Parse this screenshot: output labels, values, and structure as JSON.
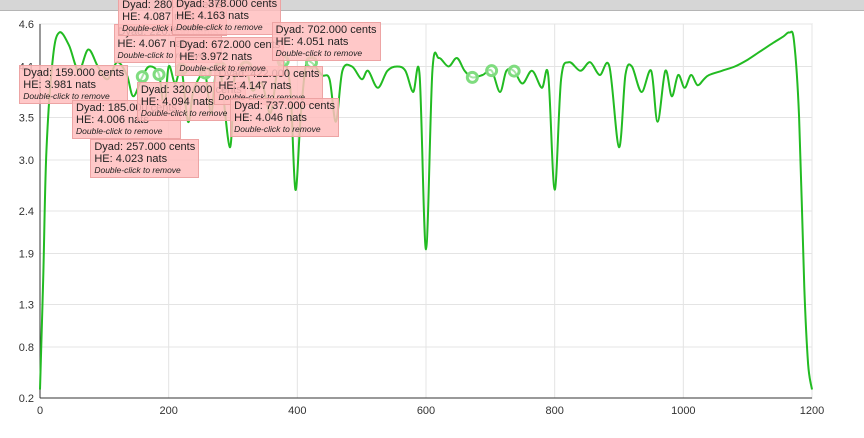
{
  "colors": {
    "line": "#22bb22",
    "marker": "#7fdc7f",
    "grid": "#e4e4e4",
    "axis": "#333333",
    "annotation_bg": "#ffbebe"
  },
  "chart_data": {
    "type": "line",
    "title": "",
    "xlabel": "",
    "ylabel": "",
    "xlim": [
      0,
      1200
    ],
    "ylim": [
      0.2,
      4.6
    ],
    "grid": true,
    "x_ticks": [
      "0",
      "200",
      "400",
      "600",
      "800",
      "1000",
      "1200"
    ],
    "y_ticks": [
      "4.6",
      "4.1",
      "3.5",
      "3.0",
      "2.4",
      "1.9",
      "1.3",
      "0.8",
      "0.2"
    ],
    "series": [
      {
        "name": "",
        "points": [
          [
            0,
            0.3
          ],
          [
            5,
            1.6
          ],
          [
            10,
            3.1
          ],
          [
            20,
            4.2
          ],
          [
            30,
            4.5
          ],
          [
            45,
            4.35
          ],
          [
            60,
            4.05
          ],
          [
            75,
            4.3
          ],
          [
            90,
            4.1
          ],
          [
            105,
            3.95
          ],
          [
            120,
            4.15
          ],
          [
            135,
            4.0
          ],
          [
            145,
            3.75
          ],
          [
            159,
            3.981
          ],
          [
            170,
            4.1
          ],
          [
            185,
            4.006
          ],
          [
            193,
            3.6
          ],
          [
            200,
            4.1
          ],
          [
            210,
            3.9
          ],
          [
            220,
            4.067
          ],
          [
            230,
            3.45
          ],
          [
            238,
            3.8
          ],
          [
            250,
            4.0
          ],
          [
            257,
            4.023
          ],
          [
            266,
            3.55
          ],
          [
            273,
            4.02
          ],
          [
            280,
            4.087
          ],
          [
            295,
            3.15
          ],
          [
            302,
            3.95
          ],
          [
            310,
            4.0
          ],
          [
            320,
            4.094
          ],
          [
            330,
            3.82
          ],
          [
            345,
            3.9
          ],
          [
            358,
            3.55
          ],
          [
            368,
            4.0
          ],
          [
            378,
            4.163
          ],
          [
            389,
            3.85
          ],
          [
            397,
            2.65
          ],
          [
            405,
            3.5
          ],
          [
            413,
            4.1
          ],
          [
            422,
            4.147
          ],
          [
            438,
            4.0
          ],
          [
            450,
            3.95
          ],
          [
            460,
            3.45
          ],
          [
            470,
            4.05
          ],
          [
            485,
            4.1
          ],
          [
            500,
            3.95
          ],
          [
            510,
            4.05
          ],
          [
            525,
            3.85
          ],
          [
            540,
            4.05
          ],
          [
            555,
            4.1
          ],
          [
            568,
            4.05
          ],
          [
            580,
            3.8
          ],
          [
            590,
            4.0
          ],
          [
            600,
            1.95
          ],
          [
            610,
            4.05
          ],
          [
            620,
            4.2
          ],
          [
            635,
            4.1
          ],
          [
            648,
            4.2
          ],
          [
            660,
            4.05
          ],
          [
            672,
            3.972
          ],
          [
            688,
            4.0
          ],
          [
            702,
            4.051
          ],
          [
            715,
            3.8
          ],
          [
            725,
            4.05
          ],
          [
            737,
            4.046
          ],
          [
            750,
            3.9
          ],
          [
            765,
            4.05
          ],
          [
            780,
            3.85
          ],
          [
            790,
            4.0
          ],
          [
            800,
            2.65
          ],
          [
            810,
            3.95
          ],
          [
            822,
            4.15
          ],
          [
            840,
            4.05
          ],
          [
            855,
            4.15
          ],
          [
            870,
            4.0
          ],
          [
            885,
            4.1
          ],
          [
            900,
            3.15
          ],
          [
            910,
            4.0
          ],
          [
            920,
            4.1
          ],
          [
            935,
            3.8
          ],
          [
            950,
            4.05
          ],
          [
            960,
            3.45
          ],
          [
            972,
            4.05
          ],
          [
            982,
            3.75
          ],
          [
            992,
            4.0
          ],
          [
            1002,
            3.85
          ],
          [
            1012,
            4.0
          ],
          [
            1022,
            3.88
          ],
          [
            1032,
            3.95
          ],
          [
            1040,
            4.0
          ],
          [
            1060,
            4.05
          ],
          [
            1080,
            4.1
          ],
          [
            1100,
            4.18
          ],
          [
            1120,
            4.28
          ],
          [
            1140,
            4.38
          ],
          [
            1155,
            4.45
          ],
          [
            1165,
            4.5
          ],
          [
            1172,
            4.4
          ],
          [
            1180,
            3.5
          ],
          [
            1188,
            1.5
          ],
          [
            1194,
            0.6
          ],
          [
            1200,
            0.3
          ]
        ]
      }
    ],
    "annotations": [
      {
        "x": 159,
        "y": 3.981,
        "dyad": "Dyad: 159.000 cents",
        "he": "HE: 3.981 nats",
        "hint": "Double-click to remove"
      },
      {
        "x": 185,
        "y": 4.006,
        "dyad": "Dyad: 185.000 cents",
        "he": "HE: 4.006 nats",
        "hint": "Double-click to remove"
      },
      {
        "x": 220,
        "y": 4.067,
        "dyad": "Dyad: 220.000 cents",
        "he": "HE: 4.067 nats",
        "hint": "Double-click to remove"
      },
      {
        "x": 257,
        "y": 4.023,
        "dyad": "Dyad: 257.000 cents",
        "he": "HE: 4.023 nats",
        "hint": "Double-click to remove"
      },
      {
        "x": 280,
        "y": 4.087,
        "dyad": "Dyad: 280.000 cents",
        "he": "HE: 4.087 nats",
        "hint": "Double-click to remove"
      },
      {
        "x": 320,
        "y": 4.094,
        "dyad": "Dyad: 320.000 cents",
        "he": "HE: 4.094 nats",
        "hint": "Double-click to remove"
      },
      {
        "x": 378,
        "y": 4.163,
        "dyad": "Dyad: 378.000 cents",
        "he": "HE: 4.163 nats",
        "hint": "Double-click to remove"
      },
      {
        "x": 422,
        "y": 4.147,
        "dyad": "Dyad: 422.000 cents",
        "he": "HE: 4.147 nats",
        "hint": "Double-click to remove"
      },
      {
        "x": 672,
        "y": 3.972,
        "dyad": "Dyad: 672.000 cents",
        "he": "HE: 3.972 nats",
        "hint": "Double-click to remove"
      },
      {
        "x": 702,
        "y": 4.051,
        "dyad": "Dyad: 702.000 cents",
        "he": "HE: 4.051 nats",
        "hint": "Double-click to remove"
      },
      {
        "x": 737,
        "y": 4.046,
        "dyad": "Dyad: 737.000 cents",
        "he": "HE: 4.046 nats",
        "hint": "Double-click to remove"
      }
    ]
  }
}
